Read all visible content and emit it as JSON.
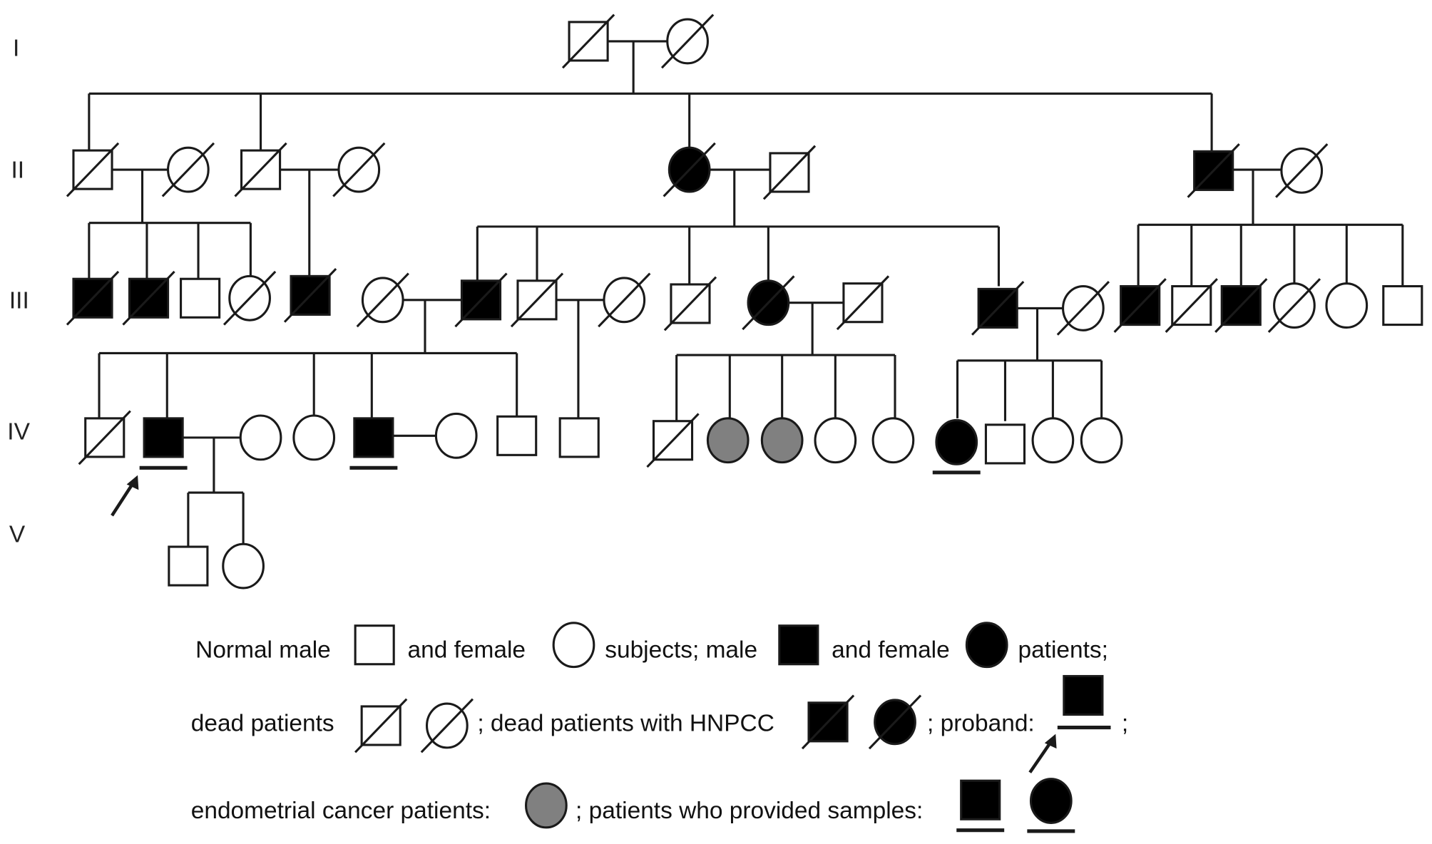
{
  "generations": [
    "I",
    "II",
    "III",
    "IV",
    "V"
  ],
  "colors": {
    "line": "#1a1a1a",
    "affected": "#000000",
    "endometrial": "#808080",
    "normal": "#ffffff"
  },
  "symbol_types": {
    "M": "male",
    "F": "female",
    "status_values": [
      "normal",
      "affected",
      "endometrial-cancer"
    ]
  },
  "legend": {
    "line1": {
      "normal_male": "Normal male",
      "and_female": "and female",
      "subjects_male": "subjects; male",
      "and_female2": "and female",
      "patients": "patients;"
    },
    "line2": {
      "dead_patients": "dead patients",
      "dead_hnpcc": "; dead patients with HNPCC",
      "proband": "; proband:",
      "end": ";"
    },
    "line3": {
      "endometrial": "endometrial cancer patients:",
      "samples": "; patients who provided samples:"
    }
  }
}
